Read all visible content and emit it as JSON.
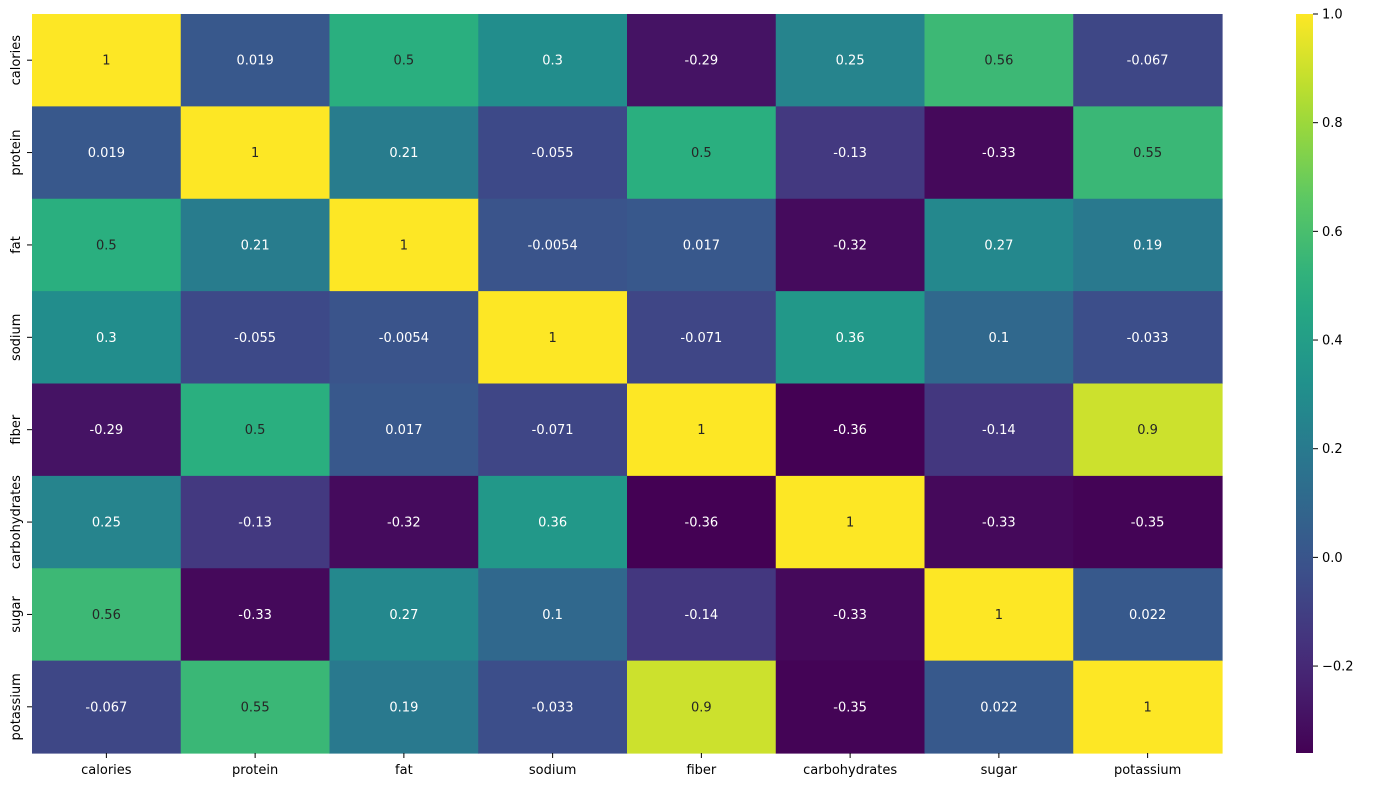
{
  "chart_data": {
    "type": "heatmap",
    "title": "",
    "xlabel": "",
    "ylabel": "",
    "x_categories": [
      "calories",
      "protein",
      "fat",
      "sodium",
      "fiber",
      "carbohydrates",
      "sugar",
      "potassium"
    ],
    "y_categories": [
      "calories",
      "protein",
      "fat",
      "sodium",
      "fiber",
      "carbohydrates",
      "sugar",
      "potassium"
    ],
    "values": [
      [
        1,
        0.019,
        0.5,
        0.3,
        -0.29,
        0.25,
        0.56,
        -0.067
      ],
      [
        0.019,
        1,
        0.21,
        -0.055,
        0.5,
        -0.13,
        -0.33,
        0.55
      ],
      [
        0.5,
        0.21,
        1,
        -0.0054,
        0.017,
        -0.32,
        0.27,
        0.19
      ],
      [
        0.3,
        -0.055,
        -0.0054,
        1,
        -0.071,
        0.36,
        0.1,
        -0.033
      ],
      [
        -0.29,
        0.5,
        0.017,
        -0.071,
        1,
        -0.36,
        -0.14,
        0.9
      ],
      [
        0.25,
        -0.13,
        -0.32,
        0.36,
        -0.36,
        1,
        -0.33,
        -0.35
      ],
      [
        0.56,
        -0.33,
        0.27,
        0.1,
        -0.14,
        -0.33,
        1,
        0.022
      ],
      [
        -0.067,
        0.55,
        0.19,
        -0.033,
        0.9,
        -0.35,
        0.022,
        1
      ]
    ],
    "annotations": [
      [
        "1",
        "0.019",
        "0.5",
        "0.3",
        "-0.29",
        "0.25",
        "0.56",
        "-0.067"
      ],
      [
        "0.019",
        "1",
        "0.21",
        "-0.055",
        "0.5",
        "-0.13",
        "-0.33",
        "0.55"
      ],
      [
        "0.5",
        "0.21",
        "1",
        "-0.0054",
        "0.017",
        "-0.32",
        "0.27",
        "0.19"
      ],
      [
        "0.3",
        "-0.055",
        "-0.0054",
        "1",
        "-0.071",
        "0.36",
        "0.1",
        "-0.033"
      ],
      [
        "-0.29",
        "0.5",
        "0.017",
        "-0.071",
        "1",
        "-0.36",
        "-0.14",
        "0.9"
      ],
      [
        "0.25",
        "-0.13",
        "-0.32",
        "0.36",
        "-0.36",
        "1",
        "-0.33",
        "-0.35"
      ],
      [
        "0.56",
        "-0.33",
        "0.27",
        "0.1",
        "-0.14",
        "-0.33",
        "1",
        "0.022"
      ],
      [
        "-0.067",
        "0.55",
        "0.19",
        "-0.033",
        "0.9",
        "-0.35",
        "0.022",
        "1"
      ]
    ],
    "colormap": "viridis",
    "vmin": -0.36,
    "vmax": 1,
    "colorbar": {
      "ticks": [
        1.0,
        0.8,
        0.6,
        0.4,
        0.2,
        0.0,
        -0.2
      ],
      "tick_labels": [
        "1.0",
        "0.8",
        "0.6",
        "0.4",
        "0.2",
        "0.0",
        "−0.2"
      ]
    },
    "annotation_colors": {
      "on_dark": "#ffffff",
      "on_light": "#262626"
    },
    "grid": false,
    "legend": "colorbar-right"
  }
}
